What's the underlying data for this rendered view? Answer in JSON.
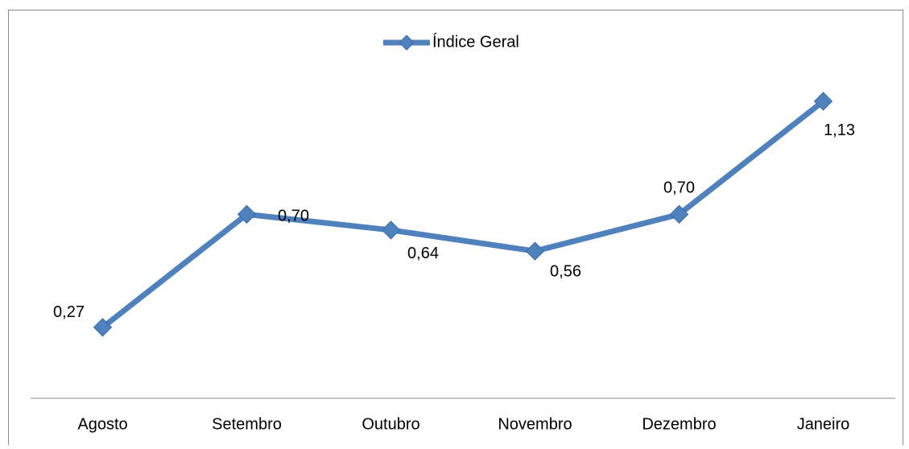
{
  "chart_data": {
    "type": "line",
    "categories": [
      "Agosto",
      "Setembro",
      "Outubro",
      "Novembro",
      "Dezembro",
      "Janeiro"
    ],
    "series": [
      {
        "name": "Índice Geral",
        "color": "#4f81bd",
        "values": [
          0.27,
          0.7,
          0.64,
          0.56,
          0.7,
          1.13
        ],
        "value_labels": [
          "0,27",
          "0,70",
          "0,64",
          "0,56",
          "0,70",
          "1,13"
        ]
      }
    ],
    "ylim": [
      0,
      1.2
    ],
    "legend": "top"
  }
}
